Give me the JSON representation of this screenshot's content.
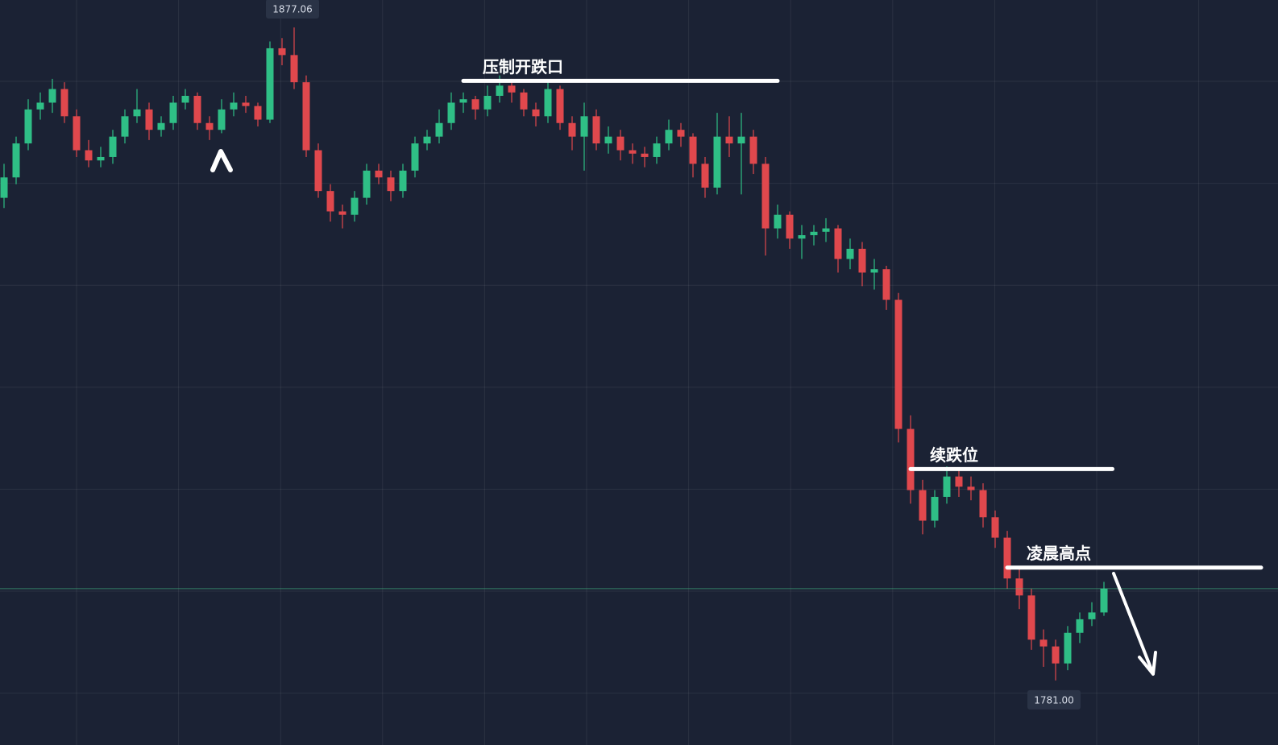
{
  "chart_data": {
    "type": "candlestick",
    "ylim": [
      1771.5,
      1881.1
    ],
    "up_color": "#2fbf86",
    "down_color": "#e0484d",
    "candles": [
      [
        1852,
        1857,
        1850.5,
        1855
      ],
      [
        1855,
        1861,
        1854,
        1860
      ],
      [
        1860,
        1866.5,
        1859,
        1865
      ],
      [
        1865,
        1867.5,
        1863.5,
        1866
      ],
      [
        1866,
        1869.5,
        1864.5,
        1868
      ],
      [
        1868,
        1869,
        1863,
        1864
      ],
      [
        1864,
        1865,
        1858,
        1859
      ],
      [
        1859,
        1860.5,
        1856.5,
        1857.5
      ],
      [
        1857.5,
        1859.5,
        1856.5,
        1858
      ],
      [
        1858,
        1862,
        1857,
        1861
      ],
      [
        1861,
        1865,
        1860,
        1864
      ],
      [
        1864,
        1868,
        1863,
        1865
      ],
      [
        1865,
        1866,
        1860.5,
        1862
      ],
      [
        1862,
        1864,
        1861,
        1863
      ],
      [
        1863,
        1867,
        1862,
        1866
      ],
      [
        1866,
        1868,
        1865,
        1867
      ],
      [
        1867,
        1867.5,
        1862,
        1863
      ],
      [
        1863,
        1864,
        1860.5,
        1862
      ],
      [
        1862,
        1866.5,
        1861.5,
        1865
      ],
      [
        1865,
        1867.5,
        1864,
        1866
      ],
      [
        1866,
        1867,
        1864.5,
        1865.5
      ],
      [
        1865.5,
        1866,
        1862.5,
        1863.5
      ],
      [
        1863.5,
        1875,
        1863,
        1874
      ],
      [
        1874,
        1875.5,
        1871.5,
        1873
      ],
      [
        1873,
        1877.06,
        1868,
        1869
      ],
      [
        1869,
        1870,
        1858,
        1859
      ],
      [
        1859,
        1860,
        1852,
        1853
      ],
      [
        1853,
        1854,
        1848.5,
        1850
      ],
      [
        1850,
        1851,
        1847.5,
        1849.5
      ],
      [
        1849.5,
        1853,
        1848.5,
        1852
      ],
      [
        1852,
        1857,
        1851,
        1856
      ],
      [
        1856,
        1857,
        1854,
        1855
      ],
      [
        1855,
        1856,
        1851.5,
        1853
      ],
      [
        1853,
        1857,
        1852,
        1856
      ],
      [
        1856,
        1861,
        1855,
        1860
      ],
      [
        1860,
        1862,
        1859,
        1861
      ],
      [
        1861,
        1865,
        1860,
        1863
      ],
      [
        1863,
        1867.5,
        1862,
        1866
      ],
      [
        1866,
        1867.5,
        1864.5,
        1866.5
      ],
      [
        1866.5,
        1867,
        1863.5,
        1865
      ],
      [
        1865,
        1868.5,
        1864,
        1867
      ],
      [
        1867,
        1870,
        1866,
        1868.5
      ],
      [
        1868.5,
        1869.5,
        1866,
        1867.5
      ],
      [
        1867.5,
        1868,
        1864,
        1865
      ],
      [
        1865,
        1866,
        1862.5,
        1864
      ],
      [
        1864,
        1869,
        1863,
        1868
      ],
      [
        1868,
        1868.5,
        1862,
        1863
      ],
      [
        1863,
        1864,
        1859,
        1861
      ],
      [
        1861,
        1866,
        1856,
        1864
      ],
      [
        1864,
        1865,
        1859,
        1860
      ],
      [
        1860,
        1862.5,
        1858.5,
        1861
      ],
      [
        1861,
        1862,
        1857.5,
        1859
      ],
      [
        1859,
        1860,
        1857,
        1858.5
      ],
      [
        1858.5,
        1859.5,
        1856.5,
        1858
      ],
      [
        1858,
        1861,
        1857,
        1860
      ],
      [
        1860,
        1863.5,
        1859,
        1862
      ],
      [
        1862,
        1863,
        1859.5,
        1861
      ],
      [
        1861,
        1861.5,
        1855,
        1857
      ],
      [
        1857,
        1858,
        1852,
        1853.5
      ],
      [
        1853.5,
        1864.5,
        1852.5,
        1861
      ],
      [
        1861,
        1864,
        1858,
        1860
      ],
      [
        1860,
        1864.5,
        1852.5,
        1861
      ],
      [
        1861,
        1862,
        1855.5,
        1857
      ],
      [
        1857,
        1858,
        1843.5,
        1847.5
      ],
      [
        1847.5,
        1851,
        1846,
        1849.5
      ],
      [
        1849.5,
        1850,
        1844.5,
        1846
      ],
      [
        1846,
        1848,
        1843,
        1846.5
      ],
      [
        1846.5,
        1848,
        1845,
        1847
      ],
      [
        1847,
        1849,
        1845.5,
        1847.5
      ],
      [
        1847.5,
        1848,
        1841,
        1843
      ],
      [
        1843,
        1846,
        1841.5,
        1844.5
      ],
      [
        1844.5,
        1845.5,
        1839,
        1841
      ],
      [
        1841,
        1843,
        1838.5,
        1841.5
      ],
      [
        1841.5,
        1842,
        1835.5,
        1837
      ],
      [
        1837,
        1838,
        1816,
        1818
      ],
      [
        1818,
        1820,
        1807,
        1809
      ],
      [
        1809,
        1810.5,
        1802.5,
        1804.5
      ],
      [
        1804.5,
        1809,
        1803.5,
        1808
      ],
      [
        1808,
        1812.5,
        1807,
        1811
      ],
      [
        1811,
        1812,
        1808,
        1809.5
      ],
      [
        1809.5,
        1811,
        1807.5,
        1809
      ],
      [
        1809,
        1810,
        1803.5,
        1805
      ],
      [
        1805,
        1806,
        1800.5,
        1802
      ],
      [
        1802,
        1803,
        1794.5,
        1796
      ],
      [
        1796,
        1797.5,
        1791.5,
        1793.5
      ],
      [
        1793.5,
        1794.5,
        1785.5,
        1787
      ],
      [
        1787,
        1788.5,
        1783,
        1786
      ],
      [
        1786,
        1787,
        1781.0,
        1783.5
      ],
      [
        1783.5,
        1789,
        1782.5,
        1788
      ],
      [
        1788,
        1791,
        1786.5,
        1790
      ],
      [
        1790,
        1792.5,
        1789,
        1791
      ],
      [
        1791,
        1795.5,
        1790.5,
        1794.5
      ]
    ],
    "price_labels": [
      {
        "value": 1877.06,
        "label": "1877.06",
        "candle": 24,
        "side": "top"
      },
      {
        "value": 1781,
        "label": "1781.00",
        "candle": 87,
        "side": "bottom"
      }
    ],
    "levels": [
      {
        "label": "压制开跌口",
        "value": 1869.2,
        "from": 38,
        "to": 64
      },
      {
        "label": "续跌位",
        "value": 1812.1,
        "from": 75,
        "to": 91.7
      },
      {
        "label": "凌晨高点",
        "value": 1797.6,
        "from": 83,
        "to": 104
      }
    ]
  }
}
